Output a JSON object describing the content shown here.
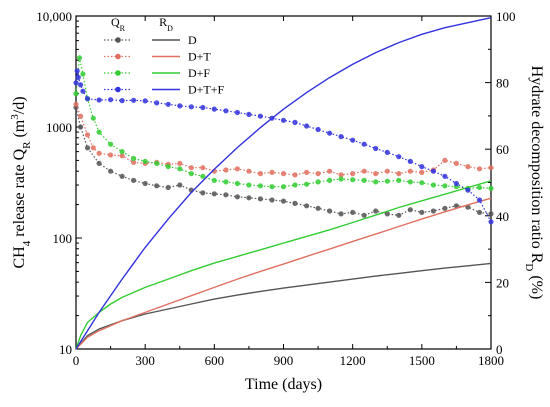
{
  "chart_data": {
    "type": "line",
    "xlabel": "Time (days)",
    "ylabel_left_parts": [
      "CH",
      "4",
      " release rate Q",
      "R",
      " (m",
      "3",
      "/d)"
    ],
    "ylabel_right_parts": [
      "Hydrate decomposition ratio R",
      "D",
      " (%)"
    ],
    "x_range": [
      0,
      1800
    ],
    "x_ticks": [
      0,
      300,
      600,
      900,
      1200,
      1500,
      1800
    ],
    "x_tick_labels": [
      "0",
      "300",
      "600",
      "900",
      "1200",
      "1500",
      "1800"
    ],
    "y_left_scale": "log",
    "y_left_range": [
      10,
      10000
    ],
    "y_left_ticks": [
      10,
      100,
      1000,
      10000
    ],
    "y_left_tick_labels": [
      "10",
      "100",
      "1000",
      "10,000"
    ],
    "y_right_range": [
      0,
      100
    ],
    "y_right_ticks": [
      0,
      20,
      40,
      60,
      80,
      100
    ],
    "y_right_tick_labels": [
      "0",
      "20",
      "40",
      "60",
      "80",
      "100"
    ],
    "legend": {
      "position": "top-left",
      "header_q": [
        "Q",
        "R"
      ],
      "header_r": [
        "R",
        "D"
      ]
    },
    "series": [
      {
        "name": "D",
        "color": "#555555",
        "q_points": [
          [
            0,
            1500
          ],
          [
            20,
            1000
          ],
          [
            50,
            650
          ],
          [
            100,
            470
          ],
          [
            150,
            400
          ],
          [
            200,
            360
          ],
          [
            250,
            330
          ],
          [
            300,
            310
          ],
          [
            350,
            295
          ],
          [
            400,
            285
          ],
          [
            450,
            300
          ],
          [
            500,
            270
          ],
          [
            550,
            255
          ],
          [
            600,
            250
          ],
          [
            650,
            245
          ],
          [
            700,
            235
          ],
          [
            750,
            230
          ],
          [
            800,
            225
          ],
          [
            850,
            220
          ],
          [
            900,
            215
          ],
          [
            950,
            205
          ],
          [
            1000,
            195
          ],
          [
            1050,
            185
          ],
          [
            1100,
            175
          ],
          [
            1150,
            165
          ],
          [
            1200,
            170
          ],
          [
            1250,
            160
          ],
          [
            1300,
            175
          ],
          [
            1350,
            165
          ],
          [
            1400,
            160
          ],
          [
            1450,
            180
          ],
          [
            1500,
            170
          ],
          [
            1550,
            175
          ],
          [
            1600,
            185
          ],
          [
            1650,
            195
          ],
          [
            1700,
            190
          ],
          [
            1750,
            170
          ],
          [
            1800,
            165
          ]
        ],
        "r_points": [
          [
            0,
            0
          ],
          [
            50,
            4
          ],
          [
            100,
            6
          ],
          [
            200,
            8.5
          ],
          [
            300,
            10.5
          ],
          [
            400,
            12
          ],
          [
            500,
            13.5
          ],
          [
            600,
            15
          ],
          [
            700,
            16.2
          ],
          [
            800,
            17.3
          ],
          [
            900,
            18.3
          ],
          [
            1000,
            19.2
          ],
          [
            1100,
            20.1
          ],
          [
            1200,
            21
          ],
          [
            1300,
            21.9
          ],
          [
            1400,
            22.7
          ],
          [
            1500,
            23.5
          ],
          [
            1600,
            24.3
          ],
          [
            1700,
            25
          ],
          [
            1800,
            25.7
          ]
        ]
      },
      {
        "name": "D+T",
        "color": "#e07060",
        "q_points": [
          [
            0,
            1600
          ],
          [
            20,
            1250
          ],
          [
            50,
            850
          ],
          [
            75,
            650
          ],
          [
            100,
            580
          ],
          [
            150,
            560
          ],
          [
            200,
            550
          ],
          [
            250,
            480
          ],
          [
            300,
            470
          ],
          [
            350,
            480
          ],
          [
            400,
            460
          ],
          [
            450,
            470
          ],
          [
            500,
            430
          ],
          [
            550,
            430
          ],
          [
            600,
            400
          ],
          [
            650,
            410
          ],
          [
            700,
            420
          ],
          [
            750,
            400
          ],
          [
            800,
            380
          ],
          [
            850,
            390
          ],
          [
            900,
            380
          ],
          [
            950,
            370
          ],
          [
            1000,
            390
          ],
          [
            1050,
            380
          ],
          [
            1100,
            400
          ],
          [
            1150,
            370
          ],
          [
            1200,
            380
          ],
          [
            1250,
            400
          ],
          [
            1300,
            380
          ],
          [
            1350,
            400
          ],
          [
            1400,
            380
          ],
          [
            1450,
            400
          ],
          [
            1500,
            390
          ],
          [
            1550,
            410
          ],
          [
            1600,
            500
          ],
          [
            1650,
            470
          ],
          [
            1700,
            440
          ],
          [
            1750,
            420
          ],
          [
            1800,
            430
          ]
        ],
        "r_points": [
          [
            0,
            0
          ],
          [
            50,
            3.5
          ],
          [
            100,
            5.5
          ],
          [
            200,
            8.5
          ],
          [
            300,
            11
          ],
          [
            400,
            13.5
          ],
          [
            500,
            16
          ],
          [
            600,
            18.5
          ],
          [
            700,
            21
          ],
          [
            800,
            23.3
          ],
          [
            900,
            25.5
          ],
          [
            1000,
            27.8
          ],
          [
            1100,
            30
          ],
          [
            1200,
            32.3
          ],
          [
            1300,
            34.5
          ],
          [
            1400,
            36.8
          ],
          [
            1500,
            39
          ],
          [
            1600,
            41.2
          ],
          [
            1700,
            43.3
          ],
          [
            1800,
            45.3
          ]
        ]
      },
      {
        "name": "D+F",
        "color": "#33cc33",
        "q_points": [
          [
            0,
            2000
          ],
          [
            15,
            4200
          ],
          [
            30,
            3000
          ],
          [
            50,
            1800
          ],
          [
            75,
            1200
          ],
          [
            100,
            900
          ],
          [
            150,
            700
          ],
          [
            200,
            600
          ],
          [
            250,
            520
          ],
          [
            300,
            490
          ],
          [
            350,
            470
          ],
          [
            400,
            440
          ],
          [
            450,
            420
          ],
          [
            500,
            380
          ],
          [
            550,
            360
          ],
          [
            600,
            330
          ],
          [
            650,
            320
          ],
          [
            700,
            310
          ],
          [
            750,
            300
          ],
          [
            800,
            295
          ],
          [
            850,
            290
          ],
          [
            900,
            290
          ],
          [
            950,
            300
          ],
          [
            1000,
            305
          ],
          [
            1050,
            320
          ],
          [
            1100,
            330
          ],
          [
            1150,
            340
          ],
          [
            1200,
            335
          ],
          [
            1250,
            330
          ],
          [
            1300,
            320
          ],
          [
            1350,
            325
          ],
          [
            1400,
            330
          ],
          [
            1450,
            320
          ],
          [
            1500,
            315
          ],
          [
            1550,
            300
          ],
          [
            1600,
            295
          ],
          [
            1650,
            290
          ],
          [
            1700,
            280
          ],
          [
            1750,
            285
          ],
          [
            1800,
            280
          ]
        ],
        "r_points": [
          [
            0,
            0
          ],
          [
            20,
            4
          ],
          [
            50,
            8
          ],
          [
            100,
            11
          ],
          [
            150,
            13.5
          ],
          [
            200,
            15.5
          ],
          [
            300,
            18.5
          ],
          [
            400,
            21
          ],
          [
            500,
            23.5
          ],
          [
            600,
            25.8
          ],
          [
            700,
            27.8
          ],
          [
            800,
            29.8
          ],
          [
            900,
            31.8
          ],
          [
            1000,
            33.8
          ],
          [
            1100,
            35.8
          ],
          [
            1200,
            38
          ],
          [
            1300,
            40.2
          ],
          [
            1400,
            42.5
          ],
          [
            1500,
            44.5
          ],
          [
            1600,
            46.5
          ],
          [
            1700,
            48.5
          ],
          [
            1800,
            50.5
          ]
        ]
      },
      {
        "name": "D+T+F",
        "color": "#3333dd",
        "q_points": [
          [
            0,
            2500
          ],
          [
            5,
            3200
          ],
          [
            10,
            2800
          ],
          [
            20,
            2400
          ],
          [
            30,
            2100
          ],
          [
            50,
            1800
          ],
          [
            100,
            1750
          ],
          [
            150,
            1760
          ],
          [
            200,
            1730
          ],
          [
            250,
            1740
          ],
          [
            300,
            1720
          ],
          [
            350,
            1650
          ],
          [
            400,
            1600
          ],
          [
            450,
            1550
          ],
          [
            500,
            1520
          ],
          [
            550,
            1500
          ],
          [
            600,
            1450
          ],
          [
            650,
            1400
          ],
          [
            700,
            1350
          ],
          [
            750,
            1300
          ],
          [
            800,
            1250
          ],
          [
            850,
            1200
          ],
          [
            900,
            1150
          ],
          [
            950,
            1100
          ],
          [
            1000,
            1020
          ],
          [
            1050,
            950
          ],
          [
            1100,
            880
          ],
          [
            1150,
            820
          ],
          [
            1200,
            760
          ],
          [
            1250,
            700
          ],
          [
            1300,
            640
          ],
          [
            1350,
            590
          ],
          [
            1400,
            540
          ],
          [
            1450,
            490
          ],
          [
            1500,
            440
          ],
          [
            1550,
            400
          ],
          [
            1600,
            360
          ],
          [
            1650,
            310
          ],
          [
            1700,
            270
          ],
          [
            1750,
            220
          ],
          [
            1800,
            140
          ]
        ],
        "r_points": [
          [
            0,
            0
          ],
          [
            100,
            11
          ],
          [
            200,
            21
          ],
          [
            300,
            30.5
          ],
          [
            400,
            39
          ],
          [
            500,
            47
          ],
          [
            600,
            54
          ],
          [
            700,
            60.5
          ],
          [
            800,
            66.5
          ],
          [
            900,
            72
          ],
          [
            1000,
            77
          ],
          [
            1100,
            81.5
          ],
          [
            1200,
            85.5
          ],
          [
            1300,
            89
          ],
          [
            1400,
            92
          ],
          [
            1500,
            94.5
          ],
          [
            1600,
            96.5
          ],
          [
            1700,
            98
          ],
          [
            1800,
            99.5
          ]
        ]
      }
    ]
  }
}
